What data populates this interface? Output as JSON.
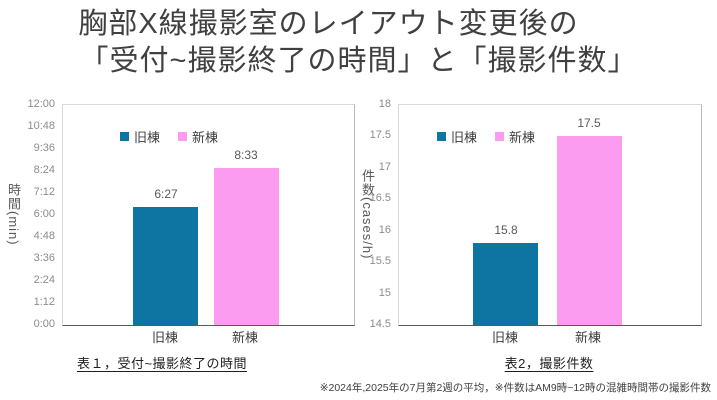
{
  "slide_title": {
    "line1": "胸部X線撮影室のレイアウト変更後の",
    "line2": "「受付~撮影終了の時間」と「撮影件数」"
  },
  "footnote": "※2024年,2025年の7月第2週の平均，※件数はAM9時~12時の混雑時間帯の撮影件数",
  "colors": {
    "bar_old_building": "#0E74A2",
    "bar_new_building": "#FB9CF1",
    "tick_label": "#8C8C8C",
    "value_label": "#595959",
    "category_label": "#3F3F3F",
    "plot_border": "#D9D9D9",
    "axis_line": "#595959",
    "title_text": "#404040"
  },
  "chart_data": [
    {
      "type": "bar",
      "title": "表１，受付~撮影終了の時間",
      "ylabel": "時間(min)",
      "categories": [
        "旧棟",
        "新棟"
      ],
      "values": [
        6.45,
        8.55
      ],
      "value_labels": [
        "6:27",
        "8:33"
      ],
      "ylim": [
        0,
        12
      ],
      "ytick_labels": [
        "0:00",
        "1:12",
        "2:24",
        "3:36",
        "4:48",
        "6:00",
        "7:12",
        "8:24",
        "9:36",
        "10:48",
        "12:00"
      ],
      "legend": [
        {
          "name": "旧棟",
          "color": "#0E74A2"
        },
        {
          "name": "新棟",
          "color": "#FB9CF1"
        }
      ],
      "legend_position": "inside-top-left",
      "grid": false
    },
    {
      "type": "bar",
      "title": "表2，撮影件数",
      "ylabel": "件数(cases/h)",
      "categories": [
        "旧棟",
        "新棟"
      ],
      "values": [
        15.8,
        17.5
      ],
      "value_labels": [
        "15.8",
        "17.5"
      ],
      "ylim": [
        14.5,
        18
      ],
      "ytick_labels": [
        "14.5",
        "15",
        "15.5",
        "16",
        "16.5",
        "17",
        "17.5",
        "18"
      ],
      "legend": [
        {
          "name": "旧棟",
          "color": "#0E74A2"
        },
        {
          "name": "新棟",
          "color": "#FB9CF1"
        }
      ],
      "legend_position": "inside-top-left",
      "grid": false
    }
  ]
}
